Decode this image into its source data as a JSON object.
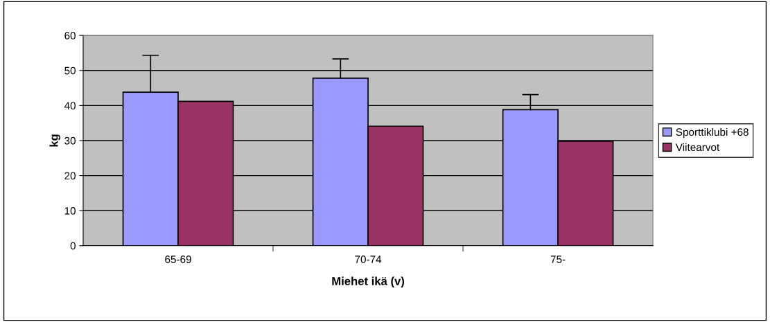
{
  "chart_data": {
    "type": "bar",
    "xlabel": "Miehet ikä (v)",
    "ylabel": "kg",
    "categories": [
      "65-69",
      "70-74",
      "75-"
    ],
    "series": [
      {
        "name": "Sporttiklubi +68",
        "color": "#9999ff",
        "values": [
          43.8,
          47.8,
          38.8
        ],
        "errors": [
          [
            43.8,
            54.3
          ],
          [
            47.8,
            53.3
          ],
          [
            38.8,
            43.1
          ]
        ]
      },
      {
        "name": "Viitearvot",
        "color": "#993366",
        "values": [
          41.2,
          34.1,
          29.8
        ]
      }
    ],
    "ylim": [
      0,
      60
    ],
    "yticks": [
      0,
      10,
      20,
      30,
      40,
      50,
      60
    ],
    "grid": "y",
    "legend": "right"
  }
}
